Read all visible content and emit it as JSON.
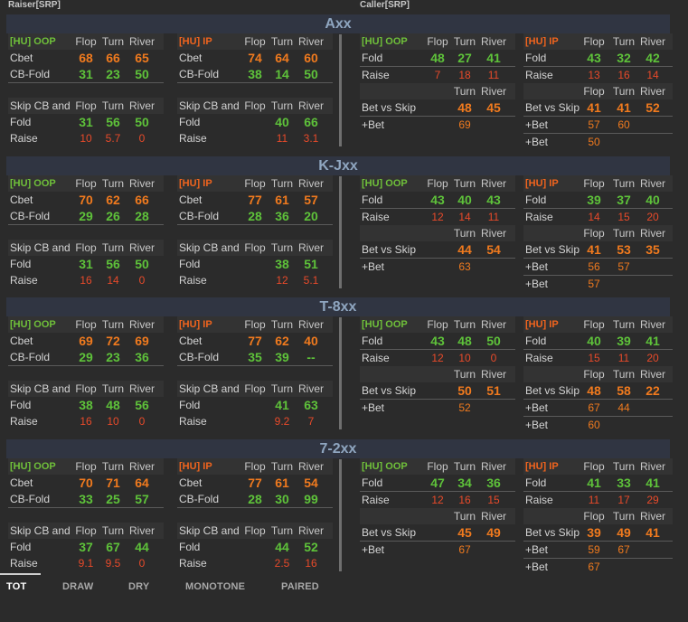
{
  "headers": {
    "raiser": "Raiser[SRP]",
    "caller": "Caller[SRP]"
  },
  "cols": {
    "flop": "Flop",
    "turn": "Turn",
    "river": "River"
  },
  "tags": {
    "hu_oop": "[HU] OOP",
    "hu_ip": "[HU] IP"
  },
  "labels": {
    "cbet": "Cbet",
    "cbfold": "CB-Fold",
    "skip": "Skip CB and",
    "fold": "Fold",
    "raise": "Raise",
    "betvsskip": "Bet vs Skip",
    "plusbet": "+Bet"
  },
  "sections": [
    {
      "title": "Axx",
      "r_oop": {
        "cbet": [
          "68",
          "66",
          "65"
        ],
        "cbfold": [
          "31",
          "23",
          "50"
        ],
        "fold": [
          "31",
          "56",
          "50"
        ],
        "raise": [
          "10",
          "5.7",
          "0"
        ]
      },
      "r_ip": {
        "cbet": [
          "74",
          "64",
          "60"
        ],
        "cbfold": [
          "38",
          "14",
          "50"
        ],
        "fold": [
          "",
          "40",
          "66"
        ],
        "raise": [
          "",
          "11",
          "3.1"
        ]
      },
      "c_oop": {
        "fold": [
          "48",
          "27",
          "41"
        ],
        "raise": [
          "7",
          "18",
          "11"
        ],
        "bvs": [
          "",
          "48",
          "45"
        ],
        "pb1": [
          "",
          "69",
          ""
        ],
        "pb2": [
          "",
          "",
          ""
        ]
      },
      "c_ip": {
        "fold": [
          "43",
          "32",
          "42"
        ],
        "raise": [
          "13",
          "16",
          "14"
        ],
        "bvs": [
          "41",
          "41",
          "52"
        ],
        "pb1": [
          "57",
          "60",
          ""
        ],
        "pb2": [
          "50",
          "",
          ""
        ]
      }
    },
    {
      "title": "K-Jxx",
      "r_oop": {
        "cbet": [
          "70",
          "62",
          "66"
        ],
        "cbfold": [
          "29",
          "26",
          "28"
        ],
        "fold": [
          "31",
          "56",
          "50"
        ],
        "raise": [
          "16",
          "14",
          "0"
        ]
      },
      "r_ip": {
        "cbet": [
          "77",
          "61",
          "57"
        ],
        "cbfold": [
          "28",
          "36",
          "20"
        ],
        "fold": [
          "",
          "38",
          "51"
        ],
        "raise": [
          "",
          "12",
          "5.1"
        ]
      },
      "c_oop": {
        "fold": [
          "43",
          "40",
          "43"
        ],
        "raise": [
          "12",
          "14",
          "11"
        ],
        "bvs": [
          "",
          "44",
          "54"
        ],
        "pb1": [
          "",
          "63",
          ""
        ],
        "pb2": [
          "",
          "",
          ""
        ]
      },
      "c_ip": {
        "fold": [
          "39",
          "37",
          "40"
        ],
        "raise": [
          "14",
          "15",
          "20"
        ],
        "bvs": [
          "41",
          "53",
          "35"
        ],
        "pb1": [
          "56",
          "57",
          ""
        ],
        "pb2": [
          "57",
          "",
          ""
        ]
      }
    },
    {
      "title": "T-8xx",
      "r_oop": {
        "cbet": [
          "69",
          "72",
          "69"
        ],
        "cbfold": [
          "29",
          "23",
          "36"
        ],
        "fold": [
          "38",
          "48",
          "56"
        ],
        "raise": [
          "16",
          "10",
          "0"
        ]
      },
      "r_ip": {
        "cbet": [
          "77",
          "62",
          "40"
        ],
        "cbfold": [
          "35",
          "39",
          "--"
        ],
        "fold": [
          "",
          "41",
          "63"
        ],
        "raise": [
          "",
          "9.2",
          "7"
        ]
      },
      "c_oop": {
        "fold": [
          "43",
          "48",
          "50"
        ],
        "raise": [
          "12",
          "10",
          "0"
        ],
        "bvs": [
          "",
          "50",
          "51"
        ],
        "pb1": [
          "",
          "52",
          ""
        ],
        "pb2": [
          "",
          "",
          ""
        ]
      },
      "c_ip": {
        "fold": [
          "40",
          "39",
          "41"
        ],
        "raise": [
          "15",
          "11",
          "20"
        ],
        "bvs": [
          "48",
          "58",
          "22"
        ],
        "pb1": [
          "67",
          "44",
          ""
        ],
        "pb2": [
          "60",
          "",
          ""
        ]
      }
    },
    {
      "title": "7-2xx",
      "r_oop": {
        "cbet": [
          "70",
          "71",
          "64"
        ],
        "cbfold": [
          "33",
          "25",
          "57"
        ],
        "fold": [
          "37",
          "67",
          "44"
        ],
        "raise": [
          "9.1",
          "9.5",
          "0"
        ]
      },
      "r_ip": {
        "cbet": [
          "77",
          "61",
          "54"
        ],
        "cbfold": [
          "28",
          "30",
          "99"
        ],
        "fold": [
          "",
          "44",
          "52"
        ],
        "raise": [
          "",
          "2.5",
          "16"
        ]
      },
      "c_oop": {
        "fold": [
          "47",
          "34",
          "36"
        ],
        "raise": [
          "12",
          "16",
          "15"
        ],
        "bvs": [
          "",
          "45",
          "49"
        ],
        "pb1": [
          "",
          "67",
          ""
        ],
        "pb2": [
          "",
          "",
          ""
        ]
      },
      "c_ip": {
        "fold": [
          "41",
          "33",
          "41"
        ],
        "raise": [
          "11",
          "17",
          "29"
        ],
        "bvs": [
          "39",
          "49",
          "41"
        ],
        "pb1": [
          "59",
          "67",
          ""
        ],
        "pb2": [
          "67",
          "",
          ""
        ]
      }
    }
  ],
  "tabs": [
    "TOT",
    "DRAW",
    "DRY",
    "MONOTONE",
    "PAIRED"
  ],
  "active_tab": "TOT"
}
